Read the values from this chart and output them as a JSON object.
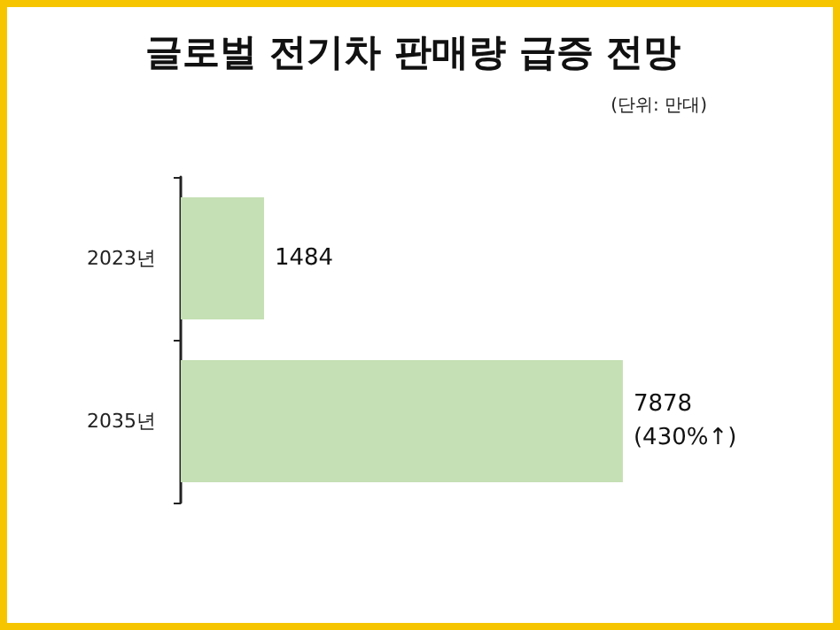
{
  "chart_data": {
    "type": "bar",
    "orientation": "horizontal",
    "title": "글로벌 전기차 판매량 급증 전망",
    "subtitle": "(단위: 만대)",
    "categories": [
      "2023년",
      "2035년"
    ],
    "values": [
      1484,
      7878
    ],
    "value_labels": [
      "1484",
      "7878\n(430%↑)"
    ],
    "color": "#c5e0b4"
  }
}
